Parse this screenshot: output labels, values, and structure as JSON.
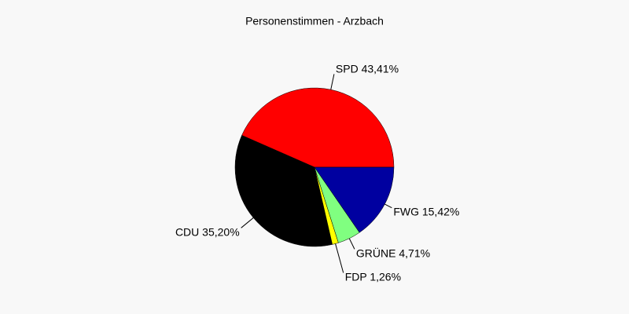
{
  "chart_data": {
    "type": "pie",
    "title": "Personenstimmen - Arzbach",
    "categories": [
      "SPD",
      "CDU",
      "FDP",
      "GRÜNE",
      "FWG"
    ],
    "values": [
      43.41,
      35.2,
      1.26,
      4.71,
      15.42
    ],
    "value_labels": [
      "43,41%",
      "35,20%",
      "1,26%",
      "4,71%",
      "15,42%"
    ],
    "colors": [
      "#ff0000",
      "#000000",
      "#ffff00",
      "#80ff80",
      "#0000a0"
    ]
  }
}
